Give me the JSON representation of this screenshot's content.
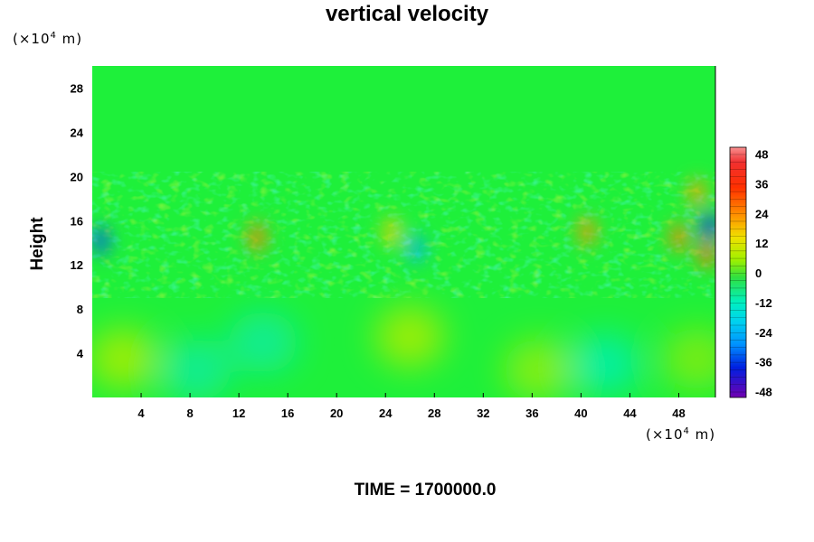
{
  "chart_data": {
    "type": "heatmap",
    "title": "vertical velocity",
    "ylabel": "Height",
    "xlabel": "",
    "x_unit_prefix": "(×10",
    "x_unit_exp": "4",
    "x_unit_suffix": " m)",
    "y_unit_prefix": "(×10",
    "y_unit_exp": "4",
    "y_unit_suffix": " m)",
    "xlim": [
      0,
      51
    ],
    "ylim": [
      0,
      30
    ],
    "x_ticks": [
      "4",
      "8",
      "12",
      "16",
      "20",
      "24",
      "28",
      "32",
      "36",
      "40",
      "44",
      "48"
    ],
    "y_ticks": [
      "4",
      "8",
      "12",
      "16",
      "20",
      "24",
      "28"
    ],
    "colorbar": {
      "range": [
        -48,
        48
      ],
      "tick_values": [
        48,
        36,
        24,
        12,
        0,
        -12,
        -24,
        -36,
        -48
      ],
      "tick_labels": [
        "48",
        "36",
        "24",
        "12",
        "0",
        "-12",
        "-24",
        "-36",
        "-48"
      ]
    },
    "features": [
      {
        "x": 0.7,
        "y": 14.2,
        "value": -30
      },
      {
        "x": 13.5,
        "y": 14.5,
        "value": 26
      },
      {
        "x": 24.5,
        "y": 15.0,
        "value": 16
      },
      {
        "x": 26.5,
        "y": 13.5,
        "value": -20
      },
      {
        "x": 40.5,
        "y": 15.0,
        "value": 24
      },
      {
        "x": 48.0,
        "y": 14.5,
        "value": 26
      },
      {
        "x": 49.5,
        "y": 18.5,
        "value": 22
      },
      {
        "x": 50.5,
        "y": 15.5,
        "value": -34
      },
      {
        "x": 50.3,
        "y": 13.0,
        "value": 28
      },
      {
        "x": 2.5,
        "y": 3.5,
        "value": 9
      },
      {
        "x": 26.0,
        "y": 5.5,
        "value": 9
      },
      {
        "x": 8.5,
        "y": 2.5,
        "value": -6
      },
      {
        "x": 14.0,
        "y": 5.0,
        "value": -6
      },
      {
        "x": 36.5,
        "y": 2.5,
        "value": 7
      },
      {
        "x": 42.0,
        "y": 3.0,
        "value": -7
      },
      {
        "x": 49.5,
        "y": 3.5,
        "value": 6
      }
    ]
  },
  "time_label": "TIME = 1700000.0"
}
